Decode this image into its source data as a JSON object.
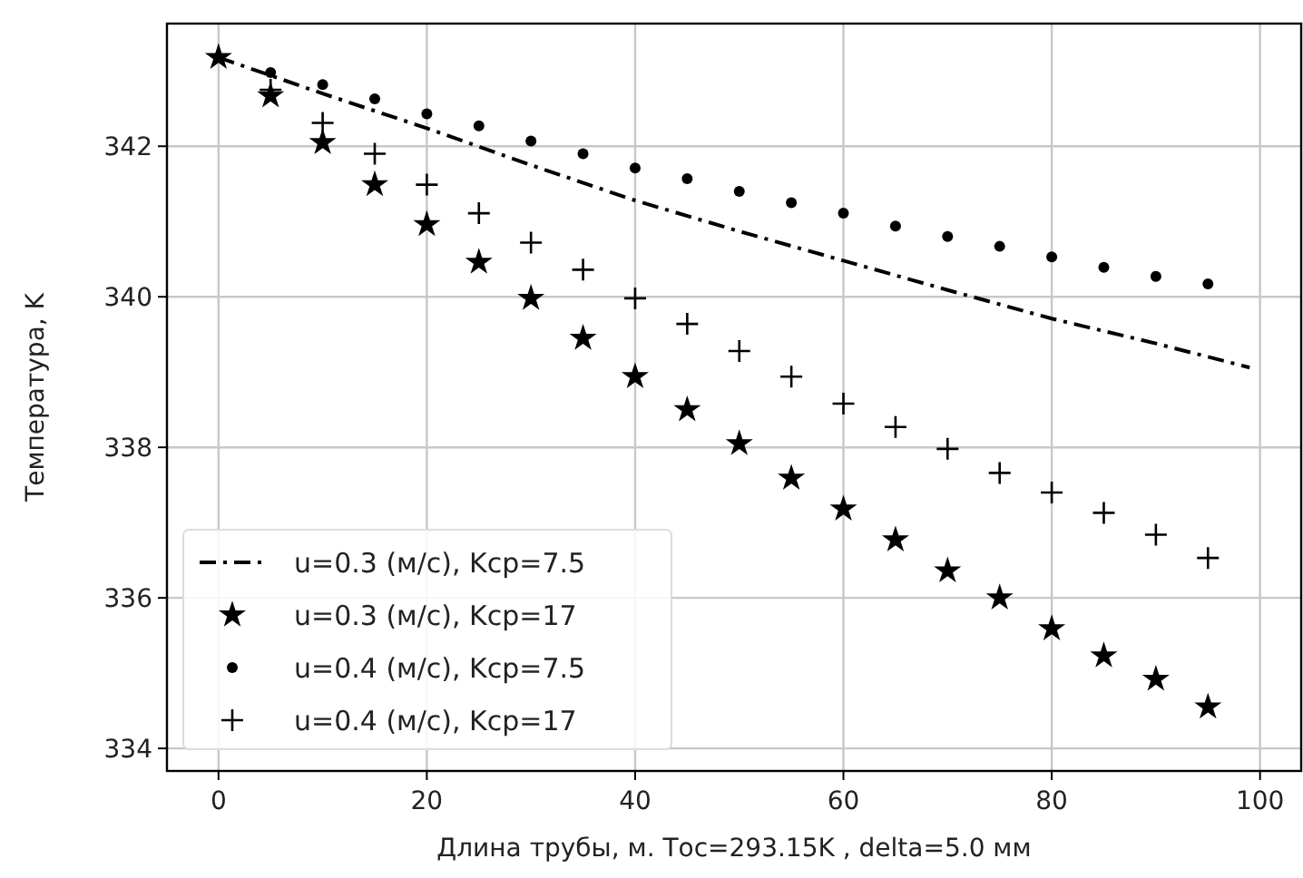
{
  "chart_data": {
    "type": "scatter",
    "xlabel": "Длина трубы, м. Tос=293.15K , delta=5.0 мм",
    "ylabel": "Температура, K",
    "xlim": [
      -4.95,
      103.95
    ],
    "xticks": [
      0,
      20,
      40,
      60,
      80,
      100
    ],
    "ylim": [
      333.7,
      343.63
    ],
    "yticks": [
      334,
      336,
      338,
      340,
      342
    ],
    "grid": true,
    "legend": "bottom left",
    "series": [
      {
        "name": "u=0.3 (м/с), Kср=7.5",
        "type": "line",
        "line_style": "dashdot",
        "marker": "none",
        "color": "#000000",
        "x": [
          0,
          10,
          20,
          30,
          40,
          50,
          60,
          70,
          80,
          90,
          99
        ],
        "values": [
          343.18,
          342.7,
          342.24,
          341.75,
          341.28,
          340.87,
          340.48,
          340.09,
          339.71,
          339.38,
          339.06
        ]
      },
      {
        "name": "u=0.3 (м/с), Kср=17",
        "type": "scatter",
        "marker": "star",
        "color": "#000000",
        "x": [
          0,
          5,
          10,
          15,
          20,
          25,
          30,
          35,
          40,
          45,
          50,
          55,
          60,
          65,
          70,
          75,
          80,
          85,
          90,
          95
        ],
        "values": [
          343.18,
          342.67,
          342.05,
          341.49,
          340.96,
          340.46,
          339.98,
          339.45,
          338.94,
          338.5,
          338.05,
          337.59,
          337.18,
          336.77,
          336.36,
          336.0,
          335.59,
          335.23,
          334.92,
          334.55
        ]
      },
      {
        "name": "u=0.4 (м/с), Kср=7.5",
        "type": "scatter",
        "marker": "circle",
        "color": "#000000",
        "x": [
          5,
          10,
          15,
          20,
          25,
          30,
          35,
          40,
          45,
          50,
          55,
          60,
          65,
          70,
          75,
          80,
          85,
          90,
          95
        ],
        "values": [
          342.98,
          342.82,
          342.63,
          342.43,
          342.27,
          342.07,
          341.9,
          341.71,
          341.57,
          341.4,
          341.25,
          341.11,
          340.94,
          340.8,
          340.67,
          340.53,
          340.39,
          340.27,
          340.17
        ]
      },
      {
        "name": "u=0.4 (м/с), Kср=17",
        "type": "scatter",
        "marker": "cross",
        "color": "#000000",
        "x": [
          5,
          10,
          15,
          20,
          25,
          30,
          35,
          40,
          45,
          50,
          55,
          60,
          65,
          70,
          75,
          80,
          85,
          90,
          95
        ],
        "values": [
          342.75,
          342.31,
          341.9,
          341.49,
          341.11,
          340.72,
          340.36,
          339.98,
          339.64,
          339.28,
          338.94,
          338.58,
          338.27,
          337.98,
          337.66,
          337.4,
          337.13,
          336.84,
          336.53
        ]
      }
    ]
  }
}
